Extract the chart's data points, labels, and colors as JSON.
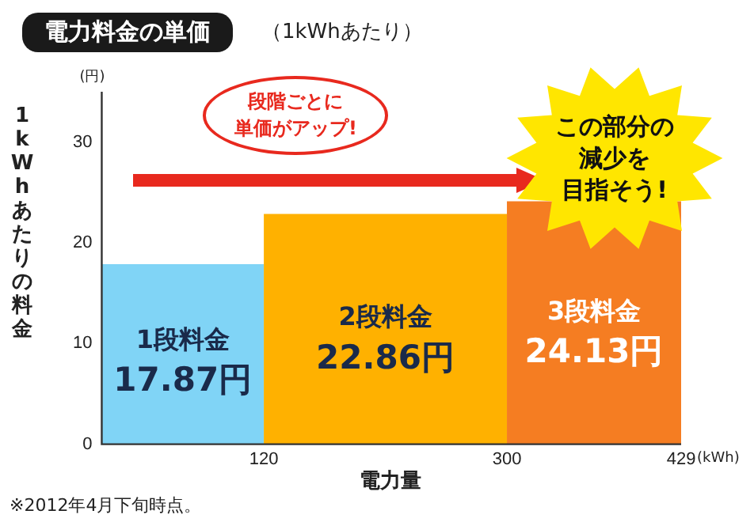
{
  "chart_data": {
    "type": "histogram",
    "title": "電力料金の単価",
    "subtitle": "（1kWhあたり）",
    "xlabel": "電力量",
    "ylabel": "1kWhあたりの料金",
    "bins": [
      0,
      120,
      300,
      429
    ],
    "values": [
      17.87,
      22.86,
      24.13
    ],
    "colors": [
      "#80d4f6",
      "#ffb100",
      "#f57d22"
    ],
    "value_labels": [
      "17.87円",
      "22.86円",
      "24.13円"
    ],
    "xlim": [
      0,
      429
    ],
    "xticks": [
      120,
      300,
      429
    ],
    "ylim": [
      0,
      35
    ],
    "yticks": [
      0,
      10,
      20,
      30
    ],
    "grid": false,
    "legend": false,
    "annotations": [
      "段階ごとに",
      "単価がアップ!",
      "この部分の",
      "減少を",
      "目指そう!",
      "(円)",
      "(kWh)",
      "※2012年4月下旬時点。",
      "1段料金",
      "2段料金",
      "3段料金"
    ]
  }
}
